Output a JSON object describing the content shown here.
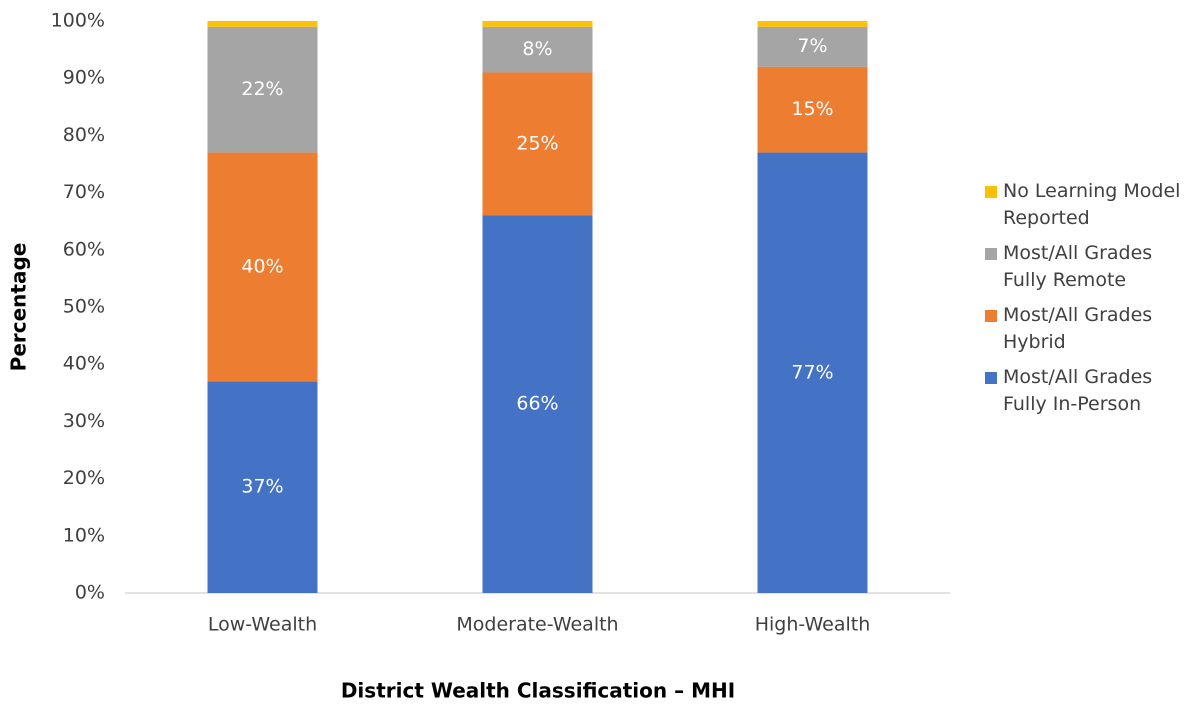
{
  "chart_data": {
    "type": "stacked_bar",
    "xlabel": "District Wealth Classification – MHI",
    "ylabel": "Percentage",
    "categories": [
      "Low-Wealth",
      "Moderate-Wealth",
      "High-Wealth"
    ],
    "series": [
      {
        "name": "Most/All Grades Fully In-Person",
        "color": "#4472c4",
        "values": [
          37,
          66,
          77
        ],
        "value_labels": [
          "37%",
          "66%",
          "77%"
        ]
      },
      {
        "name": "Most/All Grades Hybrid",
        "color": "#ed7d31",
        "values": [
          40,
          25,
          15
        ],
        "value_labels": [
          "40%",
          "25%",
          "15%"
        ]
      },
      {
        "name": "Most/All Grades Fully Remote",
        "color": "#a5a5a5",
        "values": [
          22,
          8,
          7
        ],
        "value_labels": [
          "22%",
          "8%",
          "7%"
        ]
      },
      {
        "name": "No Learning Model Reported",
        "color": "#ffc000",
        "values": [
          1,
          1,
          1
        ]
      }
    ],
    "ylim": [
      0,
      100
    ],
    "yticks": [
      {
        "value": 0,
        "label": "0%"
      },
      {
        "value": 10,
        "label": "10%"
      },
      {
        "value": 20,
        "label": "20%"
      },
      {
        "value": 30,
        "label": "30%"
      },
      {
        "value": 40,
        "label": "40%"
      },
      {
        "value": 50,
        "label": "50%"
      },
      {
        "value": 60,
        "label": "60%"
      },
      {
        "value": 70,
        "label": "70%"
      },
      {
        "value": 80,
        "label": "80%"
      },
      {
        "value": 90,
        "label": "90%"
      },
      {
        "value": 100,
        "label": "100%"
      }
    ],
    "grid": false,
    "legend": "right"
  }
}
